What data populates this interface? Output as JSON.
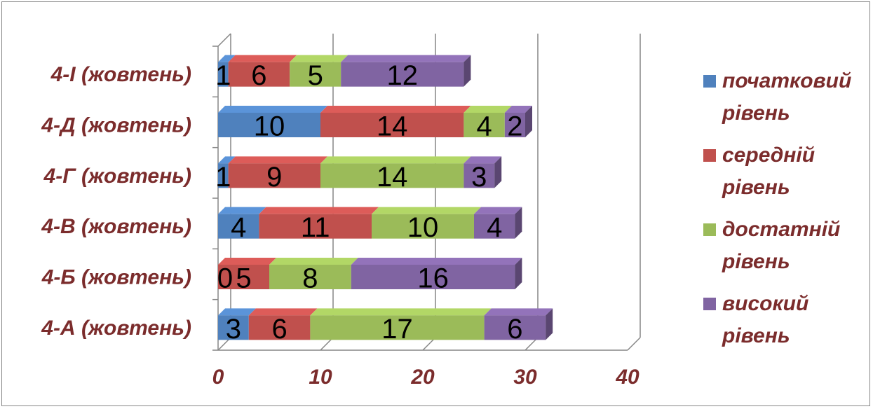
{
  "chart_data": {
    "type": "bar",
    "orientation": "horizontal",
    "stacked": true,
    "style": "3d",
    "categories": [
      "4-А (жовтень)",
      "4-Б (жовтень)",
      "4-В (жовтень)",
      "4-Г (жовтень)",
      "4-Д (жовтень)",
      "4-І (жовтень)"
    ],
    "series": [
      {
        "name": "початковий рівень",
        "color": "#4f81bd",
        "values": [
          3,
          0,
          4,
          1,
          10,
          1
        ]
      },
      {
        "name": "середній рівень",
        "color": "#c0504d",
        "values": [
          6,
          5,
          11,
          9,
          14,
          6
        ]
      },
      {
        "name": "достатній рівень",
        "color": "#9bbb59",
        "values": [
          17,
          8,
          10,
          14,
          4,
          5
        ]
      },
      {
        "name": "високий рівень",
        "color": "#8064a2",
        "values": [
          6,
          16,
          4,
          3,
          2,
          12
        ]
      }
    ],
    "xlim": [
      0,
      40
    ],
    "xticks": [
      "0",
      "10",
      "20",
      "30",
      "40"
    ],
    "legend": {
      "position": "right",
      "entries": [
        [
          "початковий",
          "рівень"
        ],
        [
          "середній",
          "рівень"
        ],
        [
          "достатній",
          "рівень"
        ],
        [
          "високий",
          "рівень"
        ]
      ]
    },
    "grid": true,
    "data_labels": true,
    "label_color": "#7b2c2c"
  }
}
